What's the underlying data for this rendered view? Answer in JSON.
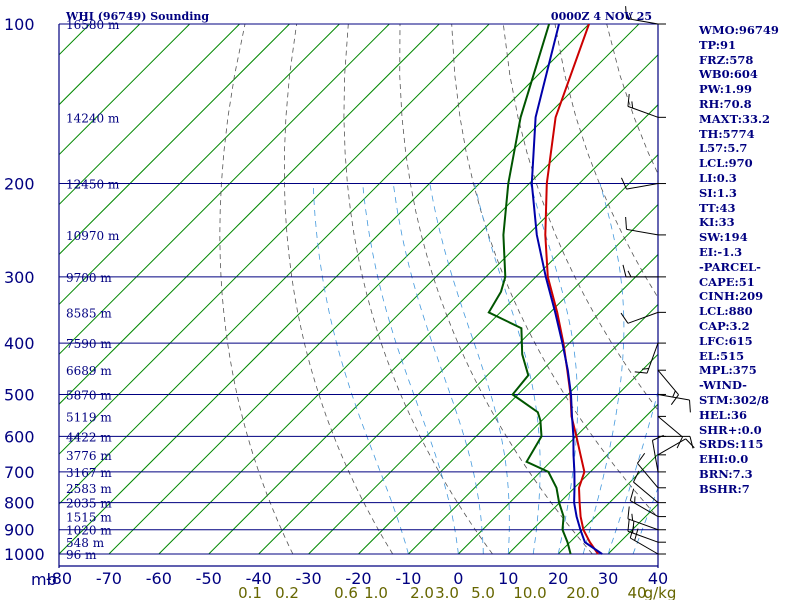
{
  "header": {
    "station": "WHI (96749) Sounding",
    "datetime": "0000Z  4 NOV 25"
  },
  "colors": {
    "frame": "#000080",
    "isotherm": "#008800",
    "dry_adiabat": "#555555",
    "moist_adiabat": "#4499dd",
    "temperature": "#cc0000",
    "dewpoint": "#005500",
    "parcel": "#0000aa",
    "mixing_ratio_label": "#666600",
    "index_text": "#000080"
  },
  "chart_data": {
    "type": "line",
    "title": "",
    "xlabel": "",
    "ylabel": "mb",
    "y_axis": "pressure (log scale, inverted)",
    "xlim": [
      -80,
      40
    ],
    "ylim": [
      1000,
      100
    ],
    "skew": "isotherms skewed 45 degrees to the right",
    "grid": true,
    "pressure_ticks": [
      100,
      200,
      300,
      400,
      500,
      600,
      700,
      800,
      900,
      1000
    ],
    "temperature_ticks": [
      "-80",
      "-70",
      "-60",
      "-50",
      "-40",
      "-30",
      "-20",
      "-10",
      "0",
      "10",
      "20",
      "30",
      "40"
    ],
    "mixing_ratio_labels": [
      "0.1",
      "0.2",
      "0.6",
      "1.0",
      "2.0",
      "3.0",
      "5.0",
      "10.0",
      "20.0",
      "40",
      "g/kg"
    ],
    "height_labels": [
      {
        "p": 100,
        "text": "16580 m"
      },
      {
        "p": 150,
        "text": "14240 m"
      },
      {
        "p": 200,
        "text": "12450 m"
      },
      {
        "p": 250,
        "text": "10970 m"
      },
      {
        "p": 300,
        "text": "9700 m"
      },
      {
        "p": 350,
        "text": "8585 m"
      },
      {
        "p": 400,
        "text": "7590 m"
      },
      {
        "p": 450,
        "text": "6689 m"
      },
      {
        "p": 500,
        "text": "5870 m"
      },
      {
        "p": 550,
        "text": "5119 m"
      },
      {
        "p": 600,
        "text": "4422 m"
      },
      {
        "p": 650,
        "text": "3776 m"
      },
      {
        "p": 700,
        "text": "3167 m"
      },
      {
        "p": 750,
        "text": "2583 m"
      },
      {
        "p": 800,
        "text": "2035 m"
      },
      {
        "p": 850,
        "text": "1515 m"
      },
      {
        "p": 900,
        "text": "1020 m"
      },
      {
        "p": 950,
        "text": "548 m"
      },
      {
        "p": 1000,
        "text": "96 m"
      }
    ],
    "series": [
      {
        "key": "temperature",
        "points": [
          [
            1000,
            28.0
          ],
          [
            950,
            24.0
          ],
          [
            900,
            20.2
          ],
          [
            850,
            17.0
          ],
          [
            800,
            14.0
          ],
          [
            750,
            10.9
          ],
          [
            700,
            8.8
          ],
          [
            650,
            4.6
          ],
          [
            600,
            0.1
          ],
          [
            550,
            -4.9
          ],
          [
            500,
            -9.5
          ],
          [
            450,
            -15.0
          ],
          [
            400,
            -21.2
          ],
          [
            350,
            -28.6
          ],
          [
            300,
            -37.6
          ],
          [
            250,
            -46.5
          ],
          [
            200,
            -56.5
          ],
          [
            150,
            -68.0
          ],
          [
            100,
            -80.0
          ]
        ]
      },
      {
        "key": "dewpoint",
        "points": [
          [
            1000,
            22.5
          ],
          [
            950,
            19.5
          ],
          [
            900,
            16.0
          ],
          [
            850,
            13.6
          ],
          [
            800,
            9.9
          ],
          [
            750,
            6.4
          ],
          [
            700,
            1.6
          ],
          [
            670,
            -4.8
          ],
          [
            600,
            -6.9
          ],
          [
            560,
            -10.3
          ],
          [
            540,
            -12.5
          ],
          [
            500,
            -21.1
          ],
          [
            460,
            -21.8
          ],
          [
            420,
            -27.2
          ],
          [
            375,
            -32.6
          ],
          [
            350,
            -42.3
          ],
          [
            320,
            -44.0
          ],
          [
            300,
            -46.1
          ],
          [
            250,
            -54.9
          ],
          [
            200,
            -64.2
          ],
          [
            150,
            -75.0
          ],
          [
            100,
            -88.0
          ]
        ]
      },
      {
        "key": "parcel",
        "points": [
          [
            1000,
            28.8
          ],
          [
            950,
            23.0
          ],
          [
            900,
            19.6
          ],
          [
            850,
            16.2
          ],
          [
            800,
            12.9
          ],
          [
            750,
            10.0
          ],
          [
            700,
            6.8
          ],
          [
            650,
            3.2
          ],
          [
            600,
            -0.5
          ],
          [
            550,
            -4.8
          ],
          [
            500,
            -9.4
          ],
          [
            450,
            -14.9
          ],
          [
            400,
            -21.4
          ],
          [
            350,
            -29.0
          ],
          [
            300,
            -38.0
          ],
          [
            250,
            -48.2
          ],
          [
            200,
            -59.5
          ],
          [
            150,
            -72.0
          ],
          [
            100,
            -86.0
          ]
        ]
      }
    ],
    "wind_barbs": [
      {
        "p": 1000,
        "dir": 300,
        "spd": 20
      },
      {
        "p": 950,
        "dir": 290,
        "spd": 20
      },
      {
        "p": 900,
        "dir": 290,
        "spd": 15
      },
      {
        "p": 850,
        "dir": 300,
        "spd": 15
      },
      {
        "p": 800,
        "dir": 310,
        "spd": 10
      },
      {
        "p": 750,
        "dir": 320,
        "spd": 10
      },
      {
        "p": 700,
        "dir": 350,
        "spd": 10
      },
      {
        "p": 650,
        "dir": 60,
        "spd": 10
      },
      {
        "p": 600,
        "dir": 90,
        "spd": 10
      },
      {
        "p": 550,
        "dir": 130,
        "spd": 10
      },
      {
        "p": 500,
        "dir": 100,
        "spd": 10
      },
      {
        "p": 450,
        "dir": 140,
        "spd": 15
      },
      {
        "p": 400,
        "dir": 200,
        "spd": 15
      },
      {
        "p": 350,
        "dir": 250,
        "spd": 10
      },
      {
        "p": 300,
        "dir": 270,
        "spd": 15
      },
      {
        "p": 250,
        "dir": 280,
        "spd": 10
      },
      {
        "p": 200,
        "dir": 260,
        "spd": 10
      },
      {
        "p": 150,
        "dir": 290,
        "spd": 15
      },
      {
        "p": 100,
        "dir": 280,
        "spd": 15
      }
    ]
  },
  "indices": [
    "WMO:96749",
    "TP:91",
    "FRZ:578",
    "WB0:604",
    "PW:1.99",
    "RH:70.8",
    "MAXT:33.2",
    "TH:5774",
    "L57:5.7",
    "LCL:970",
    "LI:0.3",
    "SI:1.3",
    "TT:43",
    "KI:33",
    "SW:194",
    "EI:-1.3",
    "-PARCEL-",
    "CAPE:51",
    "CINH:209",
    "LCL:880",
    "CAP:3.2",
    "LFC:615",
    "EL:515",
    "MPL:375",
    "-WIND-",
    "STM:302/8",
    "HEL:36",
    "SHR+:0.0",
    "SRDS:115",
    "EHI:0.0",
    "BRN:7.3",
    "BSHR:7"
  ]
}
